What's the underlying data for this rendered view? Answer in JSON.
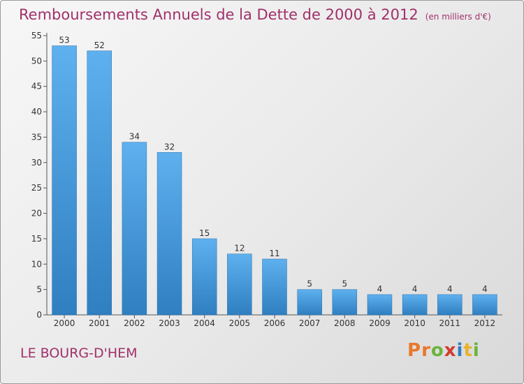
{
  "header": {
    "title": "Remboursements Annuels de la Dette de 2000 à 2012",
    "unit": "(en milliers d'€)"
  },
  "footer": {
    "city": "LE BOURG-D'HEM",
    "logo": [
      "P",
      "r",
      "o",
      "x",
      "i",
      "t",
      "i"
    ]
  },
  "colors": {
    "bar": "#4b9fdf",
    "title": "#a0306a",
    "logo": [
      "#e8792b",
      "#e8792b",
      "#6bb43c",
      "#d43a2f",
      "#2f7fc1",
      "#e8b22b",
      "#6bb43c"
    ]
  },
  "chart_data": {
    "type": "bar",
    "categories": [
      "2000",
      "2001",
      "2002",
      "2003",
      "2004",
      "2005",
      "2006",
      "2007",
      "2008",
      "2009",
      "2010",
      "2011",
      "2012"
    ],
    "values": [
      53,
      52,
      34,
      32,
      15,
      12,
      11,
      5,
      5,
      4,
      4,
      4,
      4
    ],
    "title": "Remboursements Annuels de la Dette de 2000 à 2012",
    "ylim": [
      0,
      55
    ],
    "yticks": [
      0,
      5,
      10,
      15,
      20,
      25,
      30,
      35,
      40,
      45,
      50,
      55
    ],
    "grid": false,
    "data_labels": true
  }
}
